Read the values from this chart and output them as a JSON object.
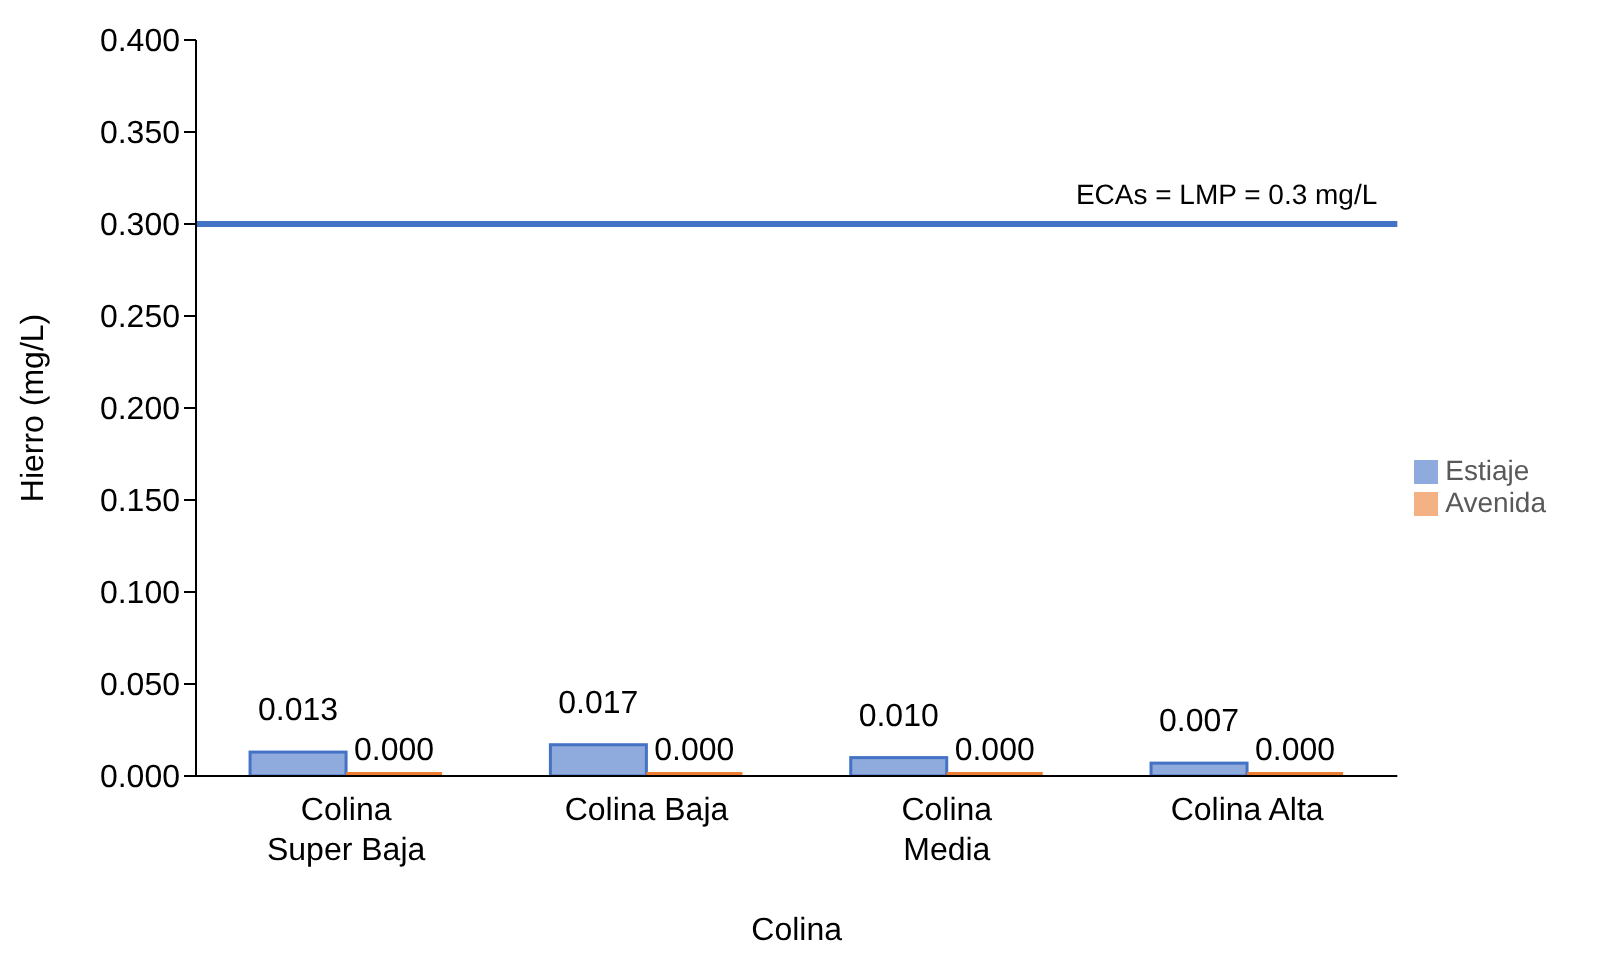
{
  "chart_data": {
    "type": "bar",
    "xlabel": "Colina",
    "ylabel": "Hierro (mg/L)",
    "categories": [
      "Colina Super Baja",
      "Colina Baja",
      "Colina Media",
      "Colina Alta"
    ],
    "series": [
      {
        "name": "Estiaje",
        "color": "#8faadc",
        "values": [
          0.013,
          0.017,
          0.01,
          0.007
        ],
        "value_labels": [
          "0.013",
          "0.017",
          "0.010",
          "0.007"
        ]
      },
      {
        "name": "Avenida",
        "color": "#f4b183",
        "values": [
          0,
          0,
          0,
          0
        ],
        "value_labels": [
          "0.000",
          "0.000",
          "0.000",
          "0.000"
        ]
      }
    ],
    "ylim": [
      0,
      0.4
    ],
    "yticks": [
      {
        "value": 0,
        "label": "0.000"
      },
      {
        "value": 0.05,
        "label": "0.050"
      },
      {
        "value": 0.1,
        "label": "0.100"
      },
      {
        "value": 0.15,
        "label": "0.150"
      },
      {
        "value": 0.2,
        "label": "0.200"
      },
      {
        "value": 0.25,
        "label": "0.250"
      },
      {
        "value": 0.3,
        "label": "0.300"
      },
      {
        "value": 0.35,
        "label": "0.350"
      },
      {
        "value": 0.4,
        "label": "0.400"
      }
    ],
    "ref_lines": [
      {
        "axis": "y",
        "value": 0.3,
        "label": "ECAs = LMP = 0.3 mg/L",
        "color": "#4472c4"
      }
    ],
    "legend": "right",
    "grid": false
  }
}
